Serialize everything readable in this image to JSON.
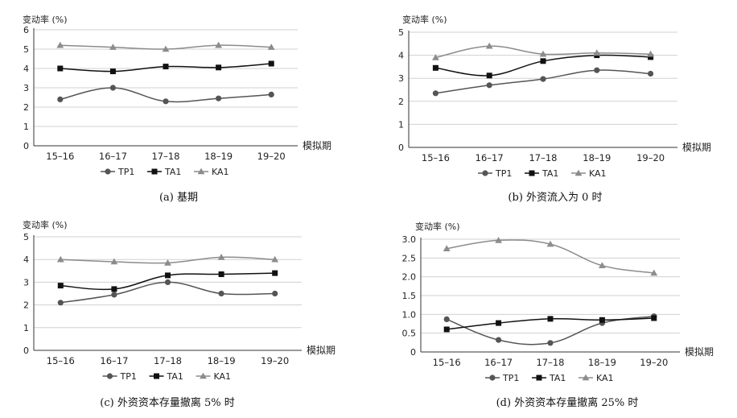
{
  "chart_data": [
    {
      "type": "line",
      "ylabel": "变动率 (%)",
      "xlabel": "模拟期",
      "caption": "(a) 基期",
      "categories": [
        "15–16",
        "16–17",
        "17–18",
        "18–19",
        "19–20"
      ],
      "ylim": [
        0,
        6
      ],
      "yticks": [
        "0",
        "1",
        "2",
        "3",
        "4",
        "5",
        "6"
      ],
      "grid": true,
      "legend": "bottom",
      "series": [
        {
          "name": "TP1",
          "marker": "circle",
          "color": "#555555",
          "values": [
            2.4,
            3.0,
            2.3,
            2.45,
            2.65
          ]
        },
        {
          "name": "TA1",
          "marker": "square",
          "color": "#111111",
          "values": [
            4.0,
            3.85,
            4.1,
            4.05,
            4.25
          ]
        },
        {
          "name": "KA1",
          "marker": "triangle",
          "color": "#8c8c8c",
          "values": [
            5.2,
            5.1,
            5.0,
            5.2,
            5.1
          ]
        }
      ]
    },
    {
      "type": "line",
      "ylabel": "变动率 (%)",
      "xlabel": "模拟期",
      "caption": "(b) 外资流入为 0 时",
      "categories": [
        "15–16",
        "16–17",
        "17–18",
        "18–19",
        "19–20"
      ],
      "ylim": [
        0,
        5
      ],
      "yticks": [
        "0",
        "1",
        "2",
        "3",
        "4",
        "5"
      ],
      "grid": true,
      "legend": "bottom",
      "series": [
        {
          "name": "TP1",
          "marker": "circle",
          "color": "#555555",
          "values": [
            2.35,
            2.7,
            2.97,
            3.35,
            3.2
          ]
        },
        {
          "name": "TA1",
          "marker": "square",
          "color": "#111111",
          "values": [
            3.45,
            3.12,
            3.75,
            4.0,
            3.92
          ]
        },
        {
          "name": "KA1",
          "marker": "triangle",
          "color": "#8c8c8c",
          "values": [
            3.9,
            4.4,
            4.05,
            4.1,
            4.05
          ]
        }
      ]
    },
    {
      "type": "line",
      "ylabel": "变动率 (%)",
      "xlabel": "模拟期",
      "caption": "(c) 外资资本存量撤离 5% 时",
      "categories": [
        "15–16",
        "16–17",
        "17–18",
        "18–19",
        "19–20"
      ],
      "ylim": [
        0,
        5
      ],
      "yticks": [
        "0",
        "1",
        "2",
        "3",
        "4",
        "5"
      ],
      "grid": true,
      "legend": "bottom",
      "series": [
        {
          "name": "TP1",
          "marker": "circle",
          "color": "#555555",
          "values": [
            2.1,
            2.45,
            3.0,
            2.5,
            2.5
          ]
        },
        {
          "name": "TA1",
          "marker": "square",
          "color": "#111111",
          "values": [
            2.85,
            2.7,
            3.3,
            3.35,
            3.4
          ]
        },
        {
          "name": "KA1",
          "marker": "triangle",
          "color": "#8c8c8c",
          "values": [
            4.0,
            3.9,
            3.85,
            4.1,
            4.0
          ]
        }
      ]
    },
    {
      "type": "line",
      "ylabel": "变动率 (%)",
      "xlabel": "模拟期",
      "caption": "(d) 外资资本存量撤离 25% 时",
      "categories": [
        "15–16",
        "16–17",
        "17–18",
        "18–19",
        "19–20"
      ],
      "ylim": [
        0,
        3
      ],
      "yticks": [
        "0",
        "0.5",
        "1.0",
        "1.5",
        "2.0",
        "2.5",
        "3.0"
      ],
      "grid": true,
      "legend": "bottom",
      "series": [
        {
          "name": "TP1",
          "marker": "circle",
          "color": "#555555",
          "values": [
            0.87,
            0.32,
            0.24,
            0.77,
            0.95
          ]
        },
        {
          "name": "TA1",
          "marker": "square",
          "color": "#111111",
          "values": [
            0.6,
            0.77,
            0.88,
            0.85,
            0.9
          ]
        },
        {
          "name": "KA1",
          "marker": "triangle",
          "color": "#8c8c8c",
          "values": [
            2.75,
            2.97,
            2.87,
            2.3,
            2.1
          ]
        }
      ]
    }
  ]
}
